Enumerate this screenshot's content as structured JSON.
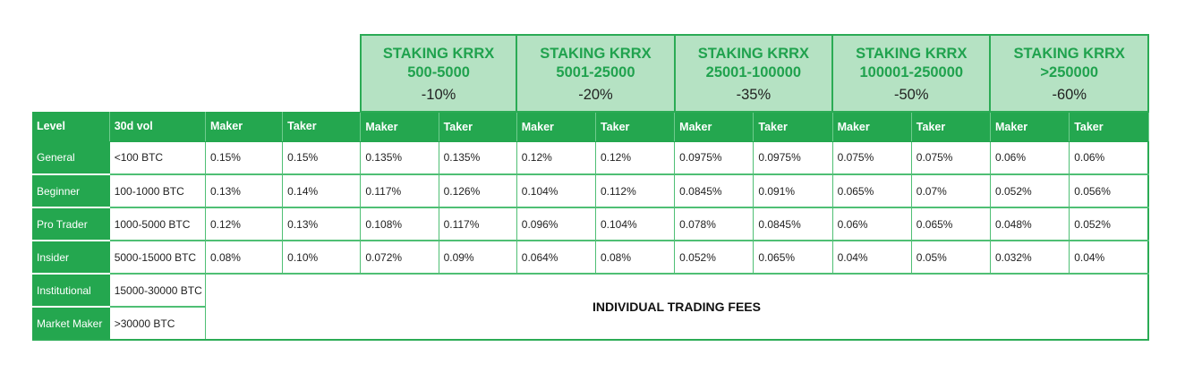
{
  "tiers": [
    {
      "title": "STAKING KRRX\n500-5000",
      "discount": "-10%"
    },
    {
      "title": "STAKING KRRX\n5001-25000",
      "discount": "-20%"
    },
    {
      "title": "STAKING KRRX\n25001-100000",
      "discount": "-35%"
    },
    {
      "title": "STAKING KRRX\n100001-250000",
      "discount": "-50%"
    },
    {
      "title": "STAKING KRRX\n>250000",
      "discount": "-60%"
    }
  ],
  "headers": [
    "Level",
    "30d vol",
    "Maker",
    "Taker",
    "Maker",
    "Taker",
    "Maker",
    "Taker",
    "Maker",
    "Taker",
    "Maker",
    "Taker",
    "Maker",
    "Taker"
  ],
  "rows": [
    {
      "level": "General",
      "vol": "<100 BTC",
      "fees": [
        "0.15%",
        "0.15%",
        "0.135%",
        "0.135%",
        "0.12%",
        "0.12%",
        "0.0975%",
        "0.0975%",
        "0.075%",
        "0.075%",
        "0.06%",
        "0.06%"
      ]
    },
    {
      "level": "Beginner",
      "vol": "100-1000 BTC",
      "fees": [
        "0.13%",
        "0.14%",
        "0.117%",
        "0.126%",
        "0.104%",
        "0.112%",
        "0.0845%",
        "0.091%",
        "0.065%",
        "0.07%",
        "0.052%",
        "0.056%"
      ]
    },
    {
      "level": "Pro Trader",
      "vol": "1000-5000 BTC",
      "fees": [
        "0.12%",
        "0.13%",
        "0.108%",
        "0.117%",
        "0.096%",
        "0.104%",
        "0.078%",
        "0.0845%",
        "0.06%",
        "0.065%",
        "0.048%",
        "0.052%"
      ]
    },
    {
      "level": "Insider",
      "vol": "5000-15000 BTC",
      "fees": [
        "0.08%",
        "0.10%",
        "0.072%",
        "0.09%",
        "0.064%",
        "0.08%",
        "0.052%",
        "0.065%",
        "0.04%",
        "0.05%",
        "0.032%",
        "0.04%"
      ]
    }
  ],
  "extra_rows": [
    {
      "level": "Institutional",
      "vol": "15000-30000 BTC"
    },
    {
      "level": "Market Maker",
      "vol": ">30000 BTC"
    }
  ],
  "merged_note": "INDIVIDUAL TRADING FEES",
  "colors": {
    "green": "#24a74f",
    "light_green": "#b5e2c3",
    "tier_text": "#20a24e"
  }
}
